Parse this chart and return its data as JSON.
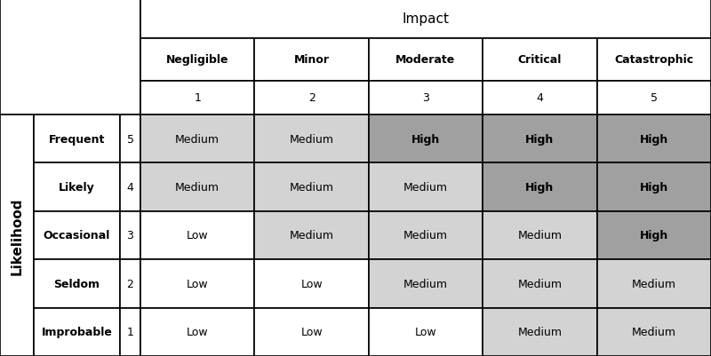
{
  "impact_header": "Impact",
  "impact_labels": [
    "Negligible",
    "Minor",
    "Moderate",
    "Critical",
    "Catastrophic"
  ],
  "impact_numbers": [
    "1",
    "2",
    "3",
    "4",
    "5"
  ],
  "likelihood_header": "Likelihood",
  "likelihood_labels": [
    "Frequent",
    "Likely",
    "Occasional",
    "Seldom",
    "Improbable"
  ],
  "likelihood_numbers": [
    "5",
    "4",
    "3",
    "2",
    "1"
  ],
  "cell_values": [
    [
      "Medium",
      "Medium",
      "High",
      "High",
      "High"
    ],
    [
      "Medium",
      "Medium",
      "Medium",
      "High",
      "High"
    ],
    [
      "Low",
      "Medium",
      "Medium",
      "Medium",
      "High"
    ],
    [
      "Low",
      "Low",
      "Medium",
      "Medium",
      "Medium"
    ],
    [
      "Low",
      "Low",
      "Low",
      "Medium",
      "Medium"
    ]
  ],
  "color_map": {
    "Low": "#ffffff",
    "Medium": "#d3d3d3",
    "High": "#a0a0a0"
  },
  "bold_values": [
    "High"
  ],
  "border_color": "#000000",
  "text_color": "#000000",
  "fig_width": 8.0,
  "fig_height": 4.02,
  "dpi": 100
}
